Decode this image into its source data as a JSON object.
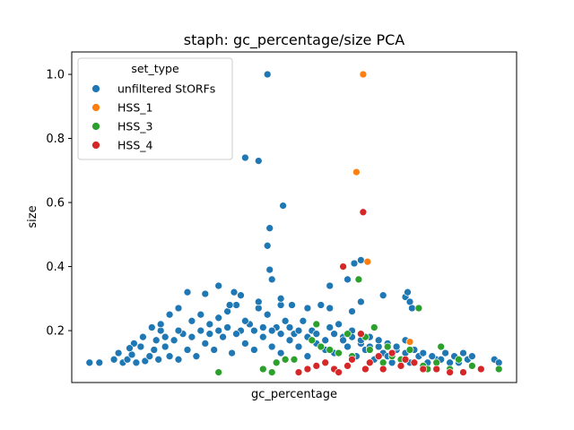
{
  "chart_data": {
    "type": "scatter",
    "title": "staph: gc_percentage/size PCA",
    "xlabel": "gc_percentage",
    "ylabel": "size",
    "x_ticks_shown": false,
    "xlim": [
      0.0,
      1.0
    ],
    "ylim": [
      0.038,
      1.07
    ],
    "yticks": [
      0.2,
      0.4,
      0.6,
      0.8,
      1.0
    ],
    "ytick_labels": [
      "0.2",
      "0.4",
      "0.6",
      "0.8",
      "1.0"
    ],
    "grid": false,
    "legend": {
      "title": "set_type",
      "placement": "top-left",
      "entries": [
        "unfiltered StORFs",
        "HSS_1",
        "HSS_3",
        "HSS_4"
      ]
    },
    "series": [
      {
        "name": "unfiltered StORFs",
        "color": "#1f77b4",
        "points": [
          [
            0.04,
            0.1
          ],
          [
            0.062,
            0.1
          ],
          [
            0.095,
            0.11
          ],
          [
            0.105,
            0.13
          ],
          [
            0.115,
            0.1
          ],
          [
            0.125,
            0.11
          ],
          [
            0.135,
            0.125
          ],
          [
            0.145,
            0.1
          ],
          [
            0.155,
            0.15
          ],
          [
            0.165,
            0.105
          ],
          [
            0.175,
            0.12
          ],
          [
            0.185,
            0.14
          ],
          [
            0.195,
            0.11
          ],
          [
            0.2,
            0.2
          ],
          [
            0.21,
            0.15
          ],
          [
            0.22,
            0.12
          ],
          [
            0.23,
            0.17
          ],
          [
            0.24,
            0.11
          ],
          [
            0.25,
            0.19
          ],
          [
            0.26,
            0.14
          ],
          [
            0.27,
            0.23
          ],
          [
            0.28,
            0.12
          ],
          [
            0.29,
            0.25
          ],
          [
            0.3,
            0.16
          ],
          [
            0.31,
            0.22
          ],
          [
            0.32,
            0.14
          ],
          [
            0.33,
            0.24
          ],
          [
            0.34,
            0.18
          ],
          [
            0.35,
            0.26
          ],
          [
            0.36,
            0.13
          ],
          [
            0.37,
            0.28
          ],
          [
            0.38,
            0.2
          ],
          [
            0.39,
            0.16
          ],
          [
            0.4,
            0.22
          ],
          [
            0.41,
            0.14
          ],
          [
            0.42,
            0.27
          ],
          [
            0.43,
            0.18
          ],
          [
            0.44,
            0.25
          ],
          [
            0.45,
            0.15
          ],
          [
            0.46,
            0.21
          ],
          [
            0.47,
            0.13
          ],
          [
            0.48,
            0.23
          ],
          [
            0.49,
            0.17
          ],
          [
            0.5,
            0.19
          ],
          [
            0.51,
            0.15
          ],
          [
            0.52,
            0.23
          ],
          [
            0.53,
            0.12
          ],
          [
            0.54,
            0.2
          ],
          [
            0.55,
            0.16
          ],
          [
            0.56,
            0.28
          ],
          [
            0.57,
            0.14
          ],
          [
            0.58,
            0.21
          ],
          [
            0.59,
            0.13
          ],
          [
            0.6,
            0.22
          ],
          [
            0.61,
            0.18
          ],
          [
            0.62,
            0.15
          ],
          [
            0.63,
            0.2
          ],
          [
            0.64,
            0.12
          ],
          [
            0.65,
            0.16
          ],
          [
            0.66,
            0.14
          ],
          [
            0.67,
            0.18
          ],
          [
            0.68,
            0.11
          ],
          [
            0.69,
            0.15
          ],
          [
            0.7,
            0.13
          ],
          [
            0.71,
            0.12
          ],
          [
            0.72,
            0.1
          ],
          [
            0.73,
            0.14
          ],
          [
            0.74,
            0.11
          ],
          [
            0.75,
            0.13
          ],
          [
            0.76,
            0.1
          ],
          [
            0.78,
            0.12
          ],
          [
            0.8,
            0.1
          ],
          [
            0.82,
            0.11
          ],
          [
            0.84,
            0.13
          ],
          [
            0.86,
            0.12
          ],
          [
            0.89,
            0.11
          ],
          [
            0.95,
            0.11
          ],
          [
            0.96,
            0.1
          ],
          [
            0.33,
            0.34
          ],
          [
            0.365,
            0.32
          ],
          [
            0.38,
            0.31
          ],
          [
            0.3,
            0.315
          ],
          [
            0.355,
            0.28
          ],
          [
            0.42,
            0.29
          ],
          [
            0.47,
            0.28
          ],
          [
            0.495,
            0.28
          ],
          [
            0.53,
            0.27
          ],
          [
            0.58,
            0.27
          ],
          [
            0.63,
            0.26
          ],
          [
            0.7,
            0.31
          ],
          [
            0.75,
            0.305
          ],
          [
            0.755,
            0.32
          ],
          [
            0.76,
            0.29
          ],
          [
            0.765,
            0.27
          ],
          [
            0.65,
            0.29
          ],
          [
            0.26,
            0.32
          ],
          [
            0.24,
            0.27
          ],
          [
            0.22,
            0.25
          ],
          [
            0.47,
            0.3
          ],
          [
            0.2,
            0.22
          ],
          [
            0.18,
            0.21
          ],
          [
            0.16,
            0.18
          ],
          [
            0.14,
            0.16
          ],
          [
            0.13,
            0.145
          ],
          [
            0.19,
            0.17
          ],
          [
            0.21,
            0.18
          ],
          [
            0.24,
            0.2
          ],
          [
            0.27,
            0.18
          ],
          [
            0.29,
            0.2
          ],
          [
            0.31,
            0.19
          ],
          [
            0.33,
            0.2
          ],
          [
            0.35,
            0.21
          ],
          [
            0.37,
            0.19
          ],
          [
            0.39,
            0.23
          ],
          [
            0.41,
            0.2
          ],
          [
            0.43,
            0.21
          ],
          [
            0.45,
            0.2
          ],
          [
            0.47,
            0.19
          ],
          [
            0.49,
            0.21
          ],
          [
            0.51,
            0.2
          ],
          [
            0.53,
            0.18
          ],
          [
            0.55,
            0.19
          ],
          [
            0.57,
            0.17
          ],
          [
            0.59,
            0.19
          ],
          [
            0.61,
            0.17
          ],
          [
            0.63,
            0.18
          ],
          [
            0.65,
            0.17
          ],
          [
            0.67,
            0.15
          ],
          [
            0.69,
            0.17
          ],
          [
            0.71,
            0.16
          ],
          [
            0.73,
            0.15
          ],
          [
            0.75,
            0.17
          ],
          [
            0.77,
            0.14
          ],
          [
            0.79,
            0.13
          ],
          [
            0.81,
            0.12
          ],
          [
            0.83,
            0.11
          ],
          [
            0.85,
            0.1
          ],
          [
            0.87,
            0.1
          ],
          [
            0.88,
            0.13
          ],
          [
            0.9,
            0.12
          ],
          [
            0.44,
            1.0
          ],
          [
            0.39,
            0.74
          ],
          [
            0.42,
            0.73
          ],
          [
            0.475,
            0.59
          ],
          [
            0.445,
            0.52
          ],
          [
            0.44,
            0.465
          ],
          [
            0.445,
            0.39
          ],
          [
            0.45,
            0.36
          ],
          [
            0.65,
            0.42
          ],
          [
            0.635,
            0.41
          ],
          [
            0.62,
            0.36
          ],
          [
            0.58,
            0.34
          ]
        ]
      },
      {
        "name": "HSS_1",
        "color": "#ff7f0e",
        "points": [
          [
            0.655,
            1.0
          ],
          [
            0.64,
            0.695
          ],
          [
            0.665,
            0.415
          ],
          [
            0.76,
            0.165
          ]
        ]
      },
      {
        "name": "HSS_3",
        "color": "#2ca02c",
        "points": [
          [
            0.33,
            0.07
          ],
          [
            0.43,
            0.08
          ],
          [
            0.45,
            0.07
          ],
          [
            0.46,
            0.1
          ],
          [
            0.48,
            0.11
          ],
          [
            0.5,
            0.11
          ],
          [
            0.54,
            0.17
          ],
          [
            0.55,
            0.22
          ],
          [
            0.56,
            0.15
          ],
          [
            0.58,
            0.14
          ],
          [
            0.6,
            0.13
          ],
          [
            0.62,
            0.19
          ],
          [
            0.63,
            0.12
          ],
          [
            0.645,
            0.36
          ],
          [
            0.66,
            0.18
          ],
          [
            0.67,
            0.14
          ],
          [
            0.68,
            0.21
          ],
          [
            0.7,
            0.1
          ],
          [
            0.71,
            0.15
          ],
          [
            0.72,
            0.12
          ],
          [
            0.74,
            0.11
          ],
          [
            0.76,
            0.14
          ],
          [
            0.78,
            0.27
          ],
          [
            0.79,
            0.09
          ],
          [
            0.8,
            0.08
          ],
          [
            0.82,
            0.1
          ],
          [
            0.83,
            0.15
          ],
          [
            0.85,
            0.08
          ],
          [
            0.87,
            0.11
          ],
          [
            0.9,
            0.09
          ],
          [
            0.96,
            0.08
          ]
        ]
      },
      {
        "name": "HSS_4",
        "color": "#d62728",
        "points": [
          [
            0.51,
            0.07
          ],
          [
            0.53,
            0.08
          ],
          [
            0.55,
            0.09
          ],
          [
            0.57,
            0.1
          ],
          [
            0.59,
            0.08
          ],
          [
            0.6,
            0.07
          ],
          [
            0.61,
            0.4
          ],
          [
            0.62,
            0.09
          ],
          [
            0.63,
            0.11
          ],
          [
            0.65,
            0.19
          ],
          [
            0.655,
            0.57
          ],
          [
            0.66,
            0.08
          ],
          [
            0.67,
            0.1
          ],
          [
            0.69,
            0.12
          ],
          [
            0.7,
            0.08
          ],
          [
            0.72,
            0.13
          ],
          [
            0.74,
            0.09
          ],
          [
            0.75,
            0.11
          ],
          [
            0.77,
            0.1
          ],
          [
            0.79,
            0.08
          ],
          [
            0.82,
            0.08
          ],
          [
            0.85,
            0.07
          ],
          [
            0.88,
            0.07
          ],
          [
            0.92,
            0.08
          ]
        ]
      }
    ]
  }
}
